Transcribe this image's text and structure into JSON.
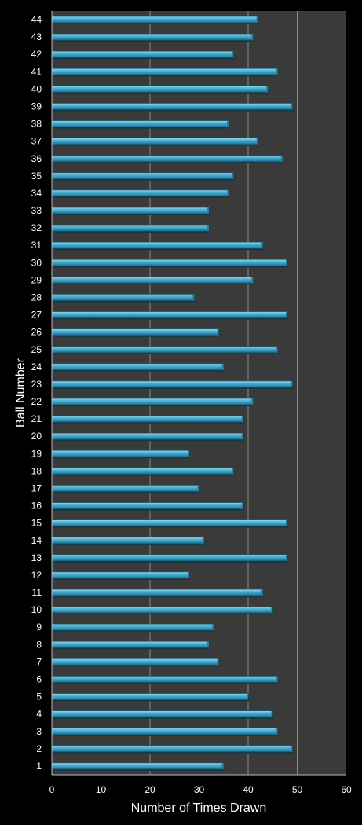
{
  "chart_data": {
    "type": "bar",
    "orientation": "horizontal",
    "xlabel": "Number of Times Drawn",
    "ylabel": "Ball Number",
    "xlim": [
      0,
      60
    ],
    "xticks": [
      0,
      10,
      20,
      30,
      40,
      50,
      60
    ],
    "grid": true,
    "categories": [
      "1",
      "2",
      "3",
      "4",
      "5",
      "6",
      "7",
      "8",
      "9",
      "10",
      "11",
      "12",
      "13",
      "14",
      "15",
      "16",
      "17",
      "18",
      "19",
      "20",
      "21",
      "22",
      "23",
      "24",
      "25",
      "26",
      "27",
      "28",
      "29",
      "30",
      "31",
      "32",
      "33",
      "34",
      "35",
      "36",
      "37",
      "38",
      "39",
      "40",
      "41",
      "42",
      "43",
      "44"
    ],
    "values": [
      35,
      49,
      46,
      45,
      40,
      46,
      34,
      32,
      33,
      45,
      43,
      28,
      48,
      31,
      48,
      39,
      30,
      37,
      28,
      39,
      39,
      41,
      49,
      35,
      46,
      34,
      48,
      29,
      41,
      48,
      43,
      32,
      32,
      36,
      37,
      47,
      42,
      36,
      49,
      44,
      46,
      37,
      41,
      42
    ],
    "colors": {
      "background": "#000000",
      "plot_area": "#3a3a3a",
      "bar": "#3fa3c4",
      "bar_highlight": "#7fd0ea",
      "bar_shadow": "#1e6a85",
      "grid": "#8a8a8a",
      "text": "#ffffff"
    }
  }
}
